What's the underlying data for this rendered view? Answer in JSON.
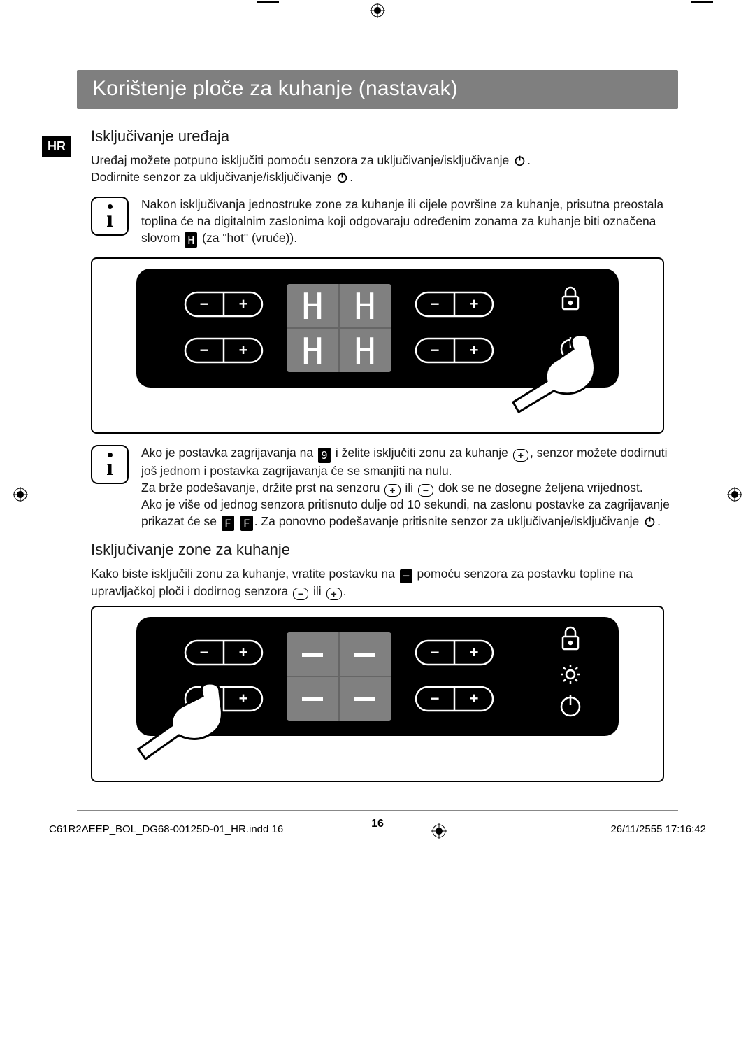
{
  "print_marks": {
    "gray_bar": [
      "#000000",
      "#1a1a1a",
      "#333333",
      "#4d4d4d",
      "#666666",
      "#808080",
      "#999999",
      "#b3b3b3",
      "#cccccc",
      "#e6e6e6",
      "#ffffff"
    ],
    "color_bar": [
      "#ffff00",
      "#00a0e9",
      "#e4007f",
      "#474747",
      "#009944",
      "#e60012",
      "#00479d",
      "#920783",
      "#f19ec2",
      "#ffffff"
    ]
  },
  "lang_badge": "HR",
  "title": "Korištenje ploče za kuhanje (nastavak)",
  "section1": {
    "heading": "Isključivanje uređaja",
    "para": "Uređaj možete potpuno isključiti pomoću senzora za uključivanje/isključivanje {power}.\nDodirnite senzor za uključivanje/isključivanje {power}.",
    "info": "Nakon isključivanja jednostruke zone za kuhanje ili cijele površine za kuhanje, prisutna preostala toplina će na digitalnim zaslonima koji odgovaraju određenim zonama za kuhanje biti označena slovom {H} (za \"hot\" (vruće))."
  },
  "panel1": {
    "display_char": "H",
    "display_color": "#808080",
    "panel_bg": "#000000",
    "stroke": "#ffffff"
  },
  "info2": "Ako je postavka zagrijavanja na {9} i želite isključiti zonu za kuhanje {plus}, senzor možete dodirnuti još jednom i postavka zagrijavanja će se smanjiti na nulu.\nZa brže podešavanje, držite prst na senzoru {plus} ili {minus} dok se ne dosegne željena vrijednost.\nAko je više od jednog senzora pritisnuto dulje od 10 sekundi, na zaslonu postavke za zagrijavanje prikazat će se {F} {F}. Za ponovno podešavanje pritisnite senzor za uključivanje/isključivanje {power}.",
  "section2": {
    "heading": "Isključivanje zone za kuhanje",
    "para": "Kako biste isključili zonu za kuhanje, vratite postavku na {dash} pomoću senzora za postavku topline na upravljačkoj ploči i dodirnog senzora {minus} ili {plus}."
  },
  "panel2": {
    "display_char": "–",
    "display_color": "#808080",
    "panel_bg": "#000000",
    "stroke": "#ffffff"
  },
  "page_number": "16",
  "print_footer": {
    "left": "C61R2AEEP_BOL_DG68-00125D-01_HR.indd   16",
    "right": "26/11/2555   17:16:42"
  }
}
